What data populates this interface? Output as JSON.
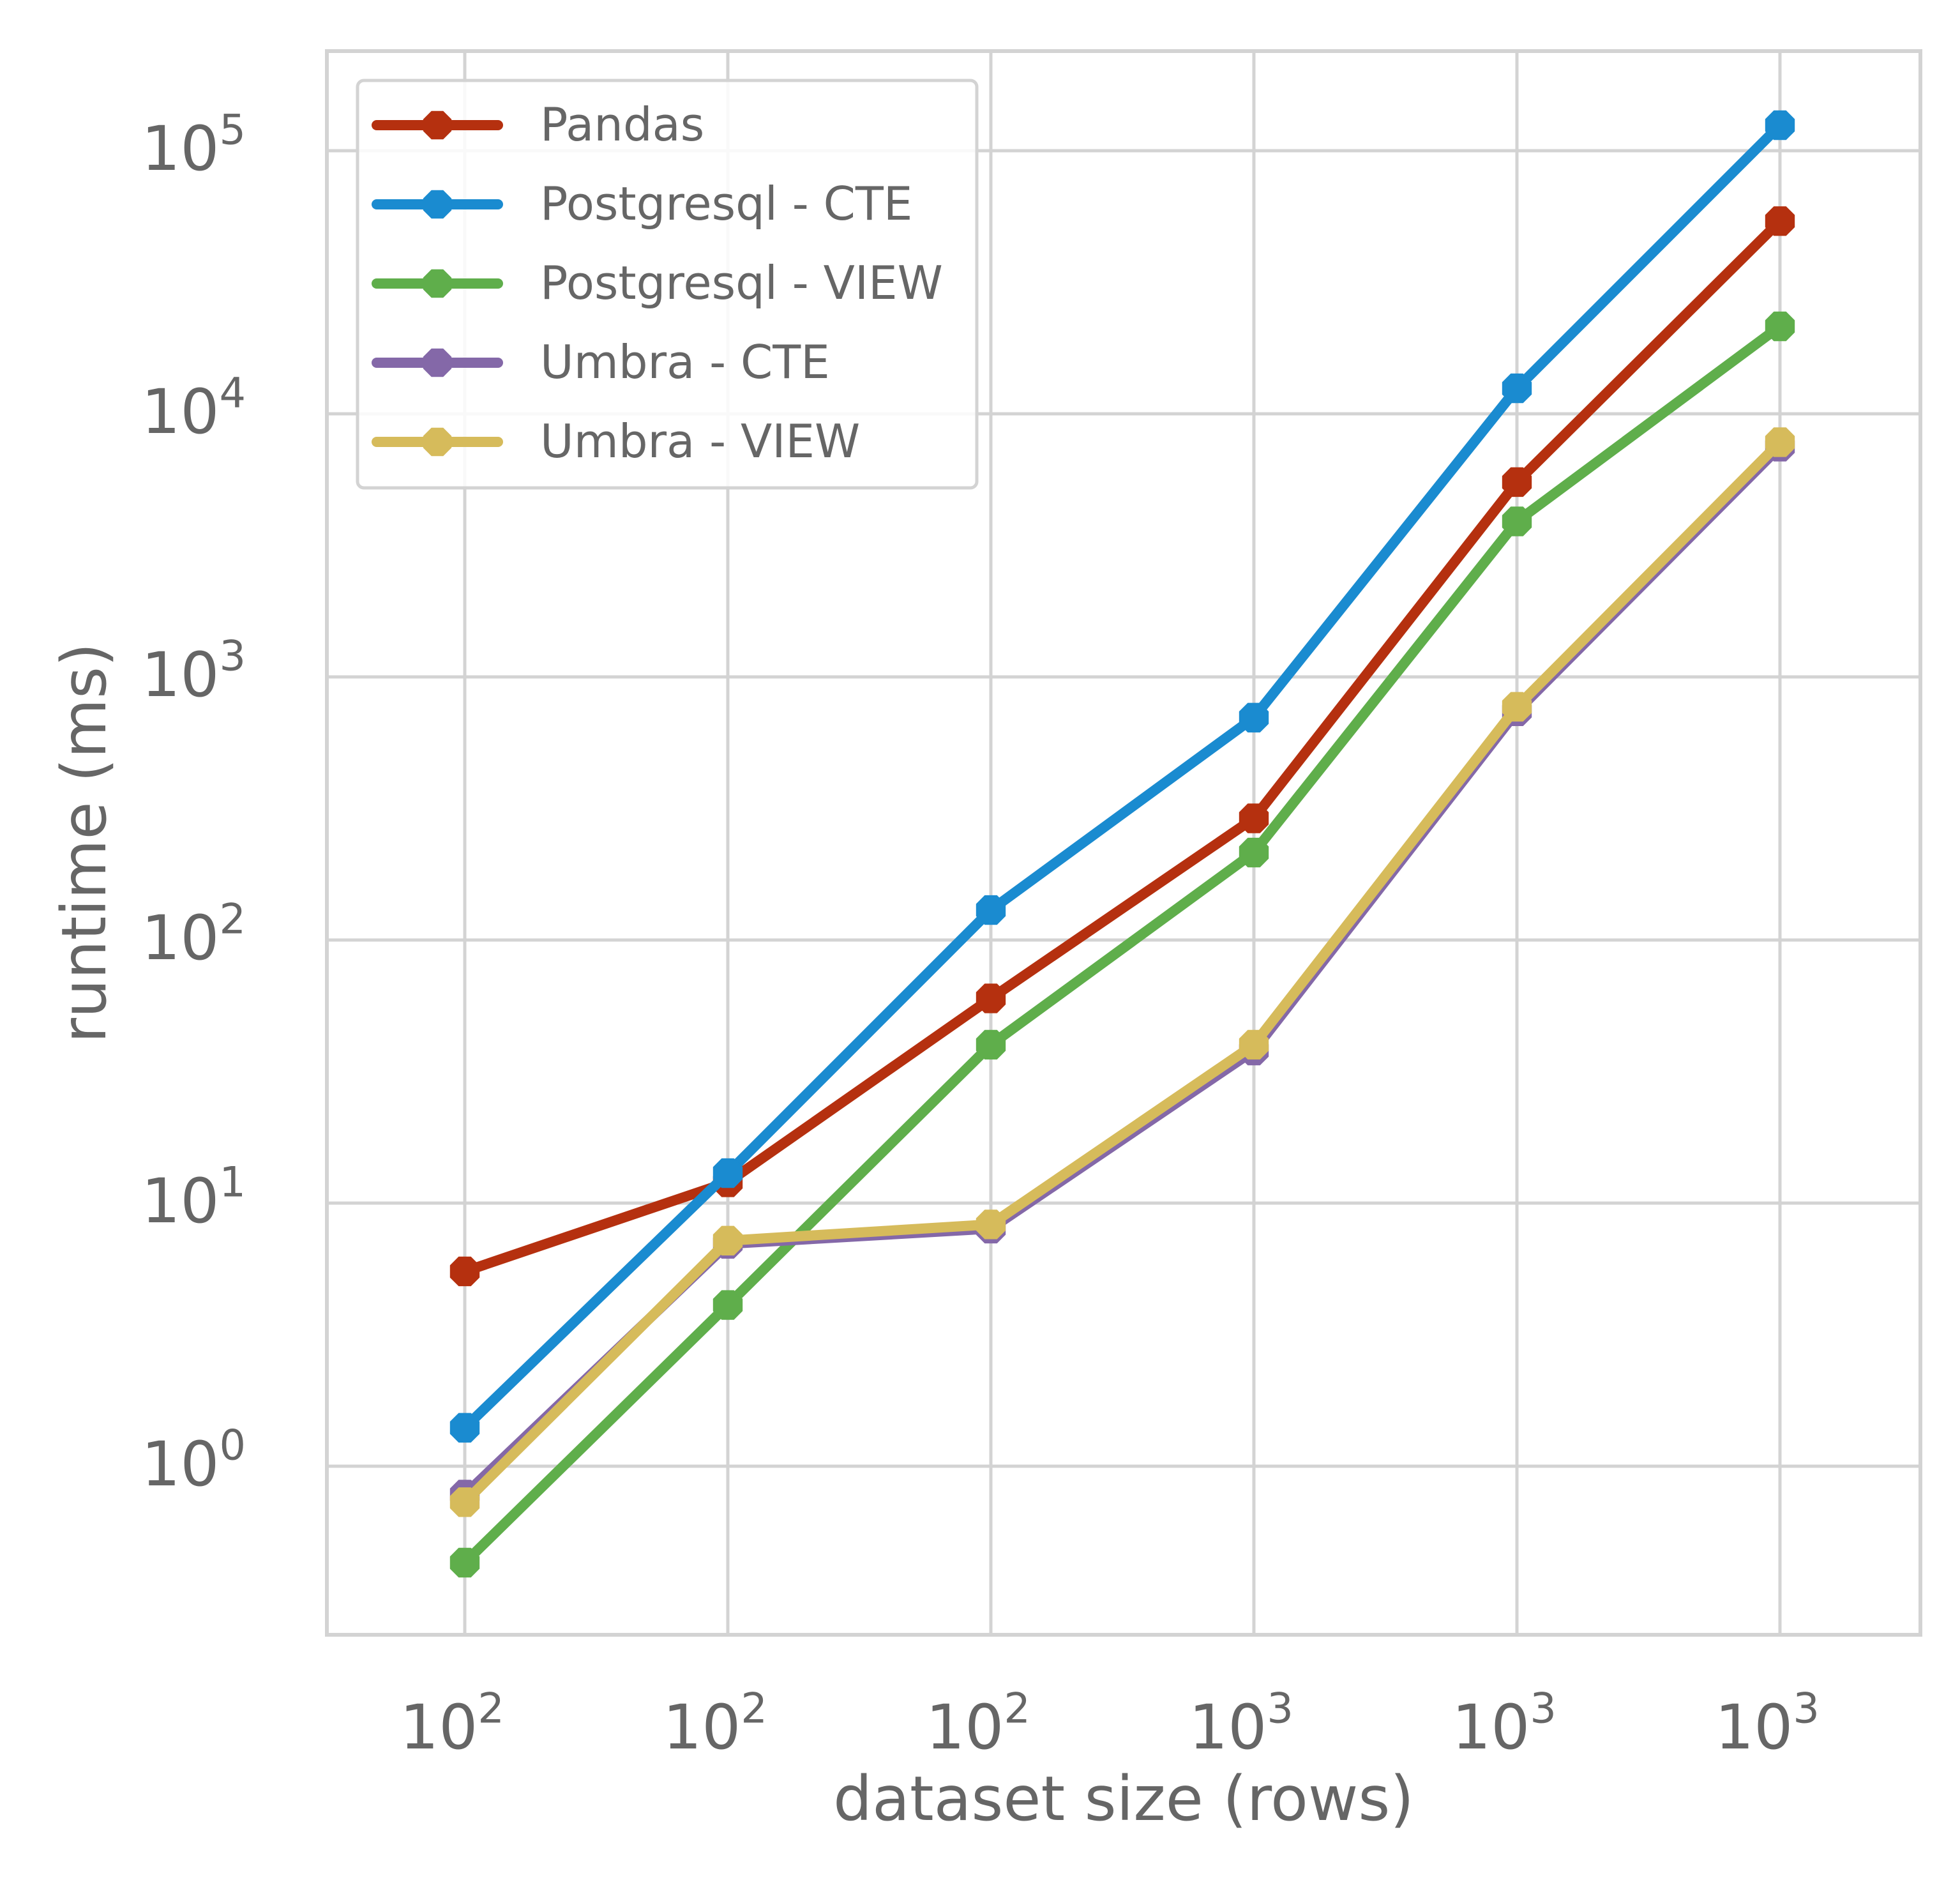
{
  "chart_data": {
    "type": "line",
    "title": "",
    "xlabel": "dataset size (rows)",
    "ylabel": "runtime (ms)",
    "x_tick_labels": [
      {
        "base": "10",
        "exp": "2"
      },
      {
        "base": "10",
        "exp": "2"
      },
      {
        "base": "10",
        "exp": "2"
      },
      {
        "base": "10",
        "exp": "3"
      },
      {
        "base": "10",
        "exp": "3"
      },
      {
        "base": "10",
        "exp": "3"
      }
    ],
    "y_scale": "log",
    "y_ticks": [
      {
        "value": 1,
        "base": "10",
        "exp": "0"
      },
      {
        "value": 10,
        "base": "10",
        "exp": "1"
      },
      {
        "value": 100,
        "base": "10",
        "exp": "2"
      },
      {
        "value": 1000,
        "base": "10",
        "exp": "3"
      },
      {
        "value": 10000,
        "base": "10",
        "exp": "4"
      },
      {
        "value": 100000,
        "base": "10",
        "exp": "5"
      }
    ],
    "ylim": [
      0.23,
      240000
    ],
    "grid": true,
    "legend_position": "top-left",
    "series": [
      {
        "name": "Pandas",
        "color": "#b5300f",
        "values": [
          5.5,
          12,
          60,
          290,
          5500,
          54000
        ]
      },
      {
        "name": "Postgresql - CTE",
        "color": "#1a8bd0",
        "values": [
          1.4,
          13,
          130,
          700,
          12500,
          125000
        ]
      },
      {
        "name": "Postgresql - VIEW",
        "color": "#5fae4b",
        "values": [
          0.43,
          4.1,
          40,
          215,
          3900,
          21500
        ]
      },
      {
        "name": "Umbra - CTE",
        "color": "#8468a8",
        "values": [
          0.78,
          7.0,
          8.0,
          38,
          740,
          7500
        ]
      },
      {
        "name": "Umbra - VIEW",
        "color": "#d6bb5b",
        "values": [
          0.73,
          7.2,
          8.3,
          40,
          770,
          7800
        ]
      }
    ]
  }
}
